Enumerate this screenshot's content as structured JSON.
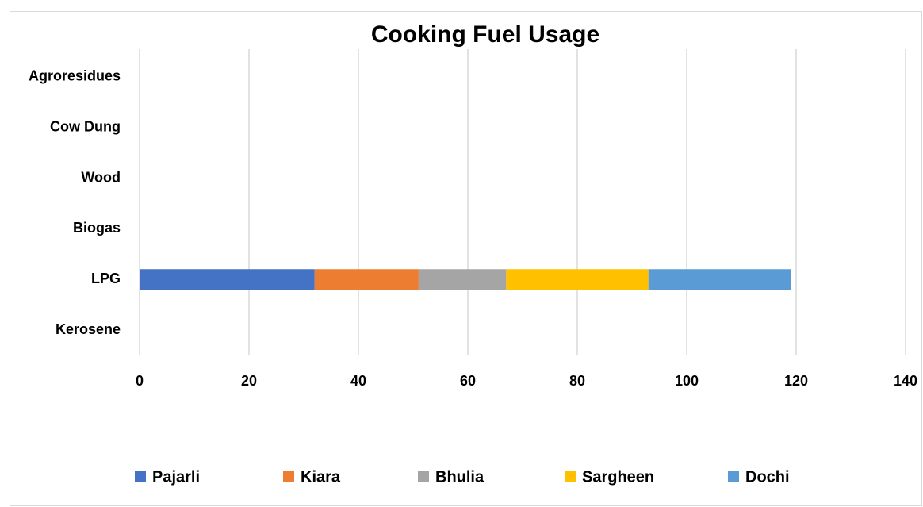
{
  "chart_data": {
    "type": "bar",
    "orientation": "horizontal",
    "stacked": true,
    "title": "Cooking Fuel Usage",
    "categories": [
      "Kerosene",
      "LPG",
      "Biogas",
      "Wood",
      "Cow Dung",
      "Agroresidues"
    ],
    "series": [
      {
        "name": "Pajarli",
        "color": "#4472c4",
        "values": [
          0,
          32,
          0,
          0,
          0,
          0
        ]
      },
      {
        "name": "Kiara",
        "color": "#ed7d31",
        "values": [
          0,
          19,
          0,
          0,
          0,
          0
        ]
      },
      {
        "name": "Bhulia",
        "color": "#a5a5a5",
        "values": [
          0,
          16,
          0,
          0,
          0,
          0
        ]
      },
      {
        "name": "Sargheen",
        "color": "#ffc000",
        "values": [
          0,
          26,
          0,
          0,
          0,
          0
        ]
      },
      {
        "name": "Dochi",
        "color": "#5b9bd5",
        "values": [
          0,
          26,
          0,
          0,
          0,
          0
        ]
      }
    ],
    "xlim": [
      0,
      140
    ],
    "xticks": [
      0,
      20,
      40,
      60,
      80,
      100,
      120,
      140
    ],
    "grid": true,
    "legend": "bottom"
  }
}
